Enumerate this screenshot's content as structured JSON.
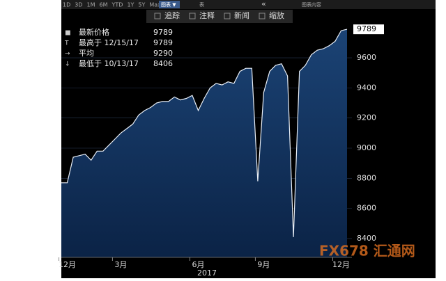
{
  "toolbar": {
    "ranges": [
      "1D",
      "3D",
      "1M",
      "6M",
      "YTD",
      "1Y",
      "5Y",
      "Max"
    ],
    "chart_menu": "图表 ▼",
    "table": "表",
    "chart_content": "图表内容"
  },
  "actions": [
    "追踪",
    "注释",
    "新闻",
    "缩放"
  ],
  "chart_data": {
    "type": "area",
    "categories": [
      null,
      "12月",
      null,
      null,
      null,
      null,
      null,
      null,
      null,
      null,
      "3月",
      null,
      null,
      null,
      null,
      null,
      null,
      null,
      null,
      null,
      null,
      null,
      null,
      "6月",
      null,
      null,
      null,
      null,
      null,
      null,
      null,
      null,
      null,
      null,
      "9月",
      null,
      null,
      null,
      null,
      null,
      null,
      null,
      null,
      null,
      null,
      null,
      null,
      "12月",
      null
    ],
    "x_sublabel": "2017",
    "values": [
      8770,
      8770,
      8940,
      8950,
      8960,
      8920,
      8980,
      8980,
      9020,
      9060,
      9100,
      9130,
      9160,
      9220,
      9250,
      9270,
      9300,
      9310,
      9310,
      9340,
      9320,
      9330,
      9350,
      9250,
      9330,
      9400,
      9430,
      9420,
      9440,
      9430,
      9510,
      9530,
      9530,
      8780,
      9370,
      9510,
      9550,
      9560,
      9480,
      8410,
      9510,
      9550,
      9620,
      9650,
      9660,
      9680,
      9710,
      9780,
      9789
    ],
    "color": "#e8eef6",
    "fill": "#123563",
    "ylim": [
      8275,
      9822
    ],
    "yticks": [
      8400,
      8600,
      8800,
      9000,
      9200,
      9400,
      9600
    ],
    "grid": true,
    "legend": [
      {
        "label": "最新价格",
        "value": 9789
      },
      {
        "label": "最高于 12/15/17",
        "value": 9789
      },
      {
        "label": "平均",
        "value": 9290
      },
      {
        "label": "最低于 10/13/17",
        "value": 8406
      }
    ]
  },
  "watermark": "FX678 汇通网"
}
